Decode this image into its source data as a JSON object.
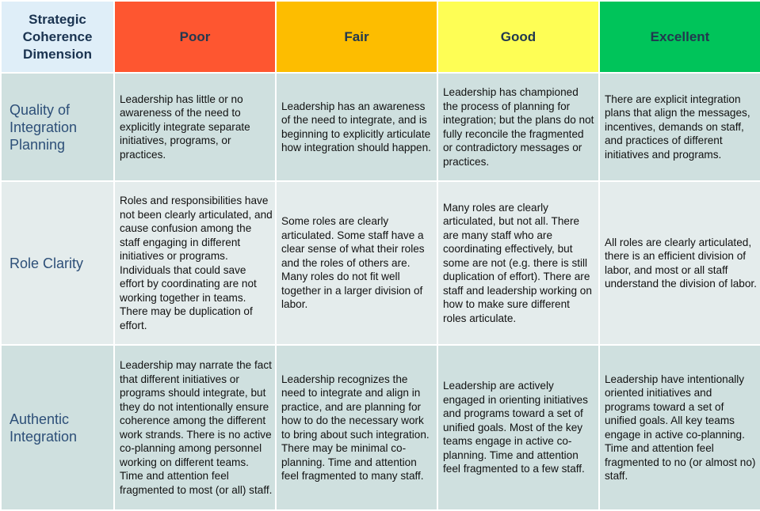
{
  "header": {
    "dimension_label": "Strategic Coherence Dimension",
    "levels": [
      "Poor",
      "Fair",
      "Good",
      "Excellent"
    ]
  },
  "colors": {
    "poor": "#fe5630",
    "fair": "#fdbd00",
    "good": "#fefe55",
    "excellent": "#00c45a",
    "header_dimension_bg": "#dfeef8"
  },
  "rows": [
    {
      "dimension": "Quality of Integration Planning",
      "cells": [
        "Leadership has little or no awareness of the need to explicitly integrate separate initiatives, programs, or practices.",
        "Leadership has an awareness of the need to integrate, and is beginning to explicitly articulate how integration should happen.",
        "Leadership has championed the process of planning for integration; but the plans do not fully reconcile the fragmented or contradictory messages or practices.",
        "There are explicit integration plans that align the messages, incentives, demands on staff, and practices of different initiatives and programs."
      ]
    },
    {
      "dimension": "Role Clarity",
      "cells": [
        "Roles and responsibilities have not been clearly articulated, and cause confusion among the staff engaging in different initiatives or programs. Individuals that could save effort by coordinating are not working together in teams. There may be duplication of effort.",
        "Some roles are clearly articulated. Some staff have a clear sense of what their roles and the roles of others are. Many roles do not fit well together in a larger division of labor.",
        "Many roles are clearly articulated, but not all. There are many staff who are coordinating effectively, but some are not (e.g. there is still duplication of effort). There are staff and leadership working on how to make sure different roles articulate.",
        "All roles are clearly articulated, there is an efficient division of labor, and most or all staff understand the division of labor."
      ]
    },
    {
      "dimension": "Authentic Integration",
      "cells": [
        "Leadership may narrate the fact that different initiatives or programs should integrate, but they do not intentionally ensure coherence among the different work strands. There is no active co-planning among personnel working on different teams. Time and attention feel fragmented to most (or all) staff.",
        "Leadership recognizes the need to integrate and align in practice, and are planning for how to do the necessary work to bring about such integration. There may be minimal co-planning. Time and attention feel fragmented to many staff.",
        "Leadership are actively engaged in orienting initiatives and programs toward a set of unified goals. Most of the key teams engage in active co-planning. Time and attention feel fragmented to a few staff.",
        "Leadership have intentionally oriented initiatives and programs toward a set of unified goals. All key teams engage in active co-planning. Time and attention feel fragmented to no (or almost no) staff."
      ]
    }
  ]
}
